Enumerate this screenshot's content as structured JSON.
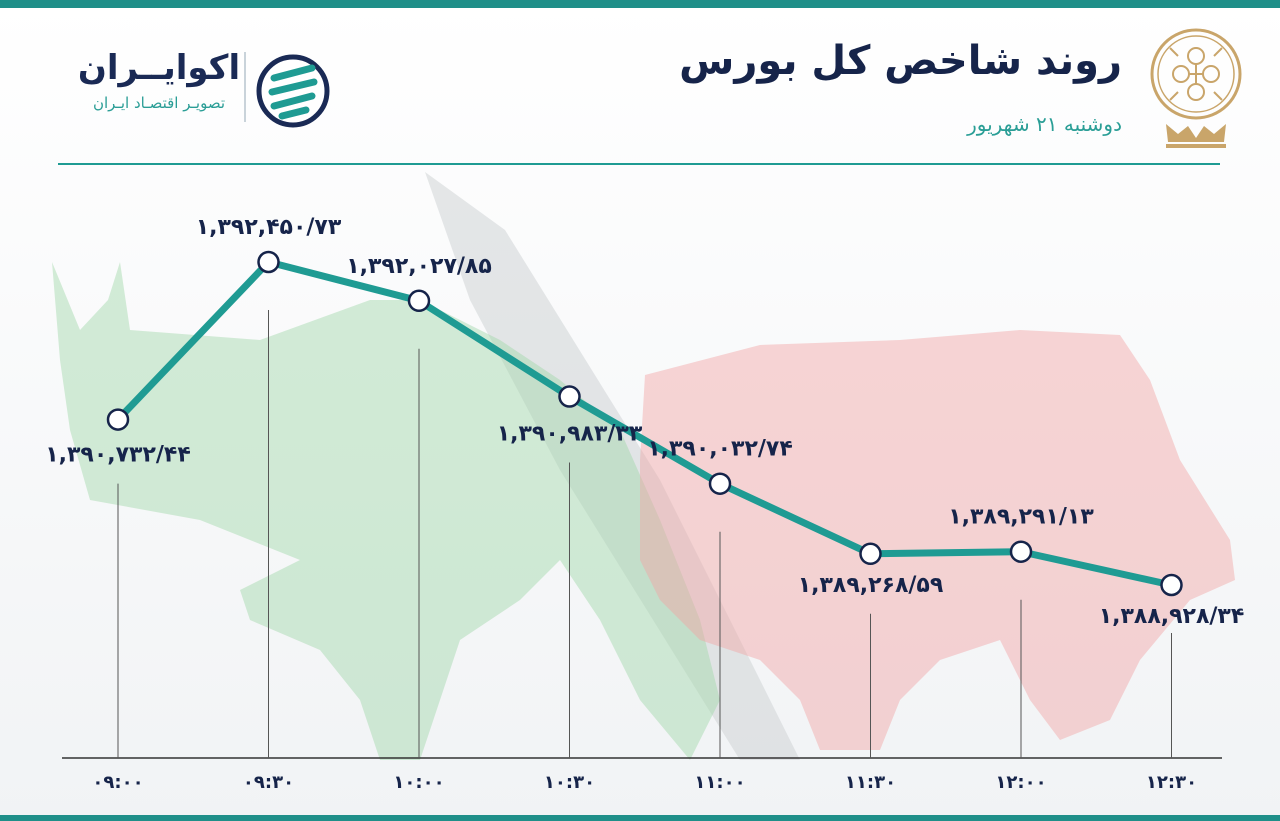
{
  "header": {
    "title": "روند شاخص کل بورس",
    "subtitle": "دوشنبه ۲۱ شهریور",
    "brand_name": "اکوایــران",
    "brand_tagline": "تصویـر اقتصـاد ایـران"
  },
  "colors": {
    "accent": "#1f9b93",
    "navy": "#16244a",
    "bull": "#9fd8a8",
    "bear": "#f2a5a5",
    "emblem": "#c9a56a"
  },
  "chart_data": {
    "type": "line",
    "title": "روند شاخص کل بورس",
    "xlabel": "",
    "ylabel": "",
    "categories": [
      "۰۹:۰۰",
      "۰۹:۳۰",
      "۱۰:۰۰",
      "۱۰:۳۰",
      "۱۱:۰۰",
      "۱۱:۳۰",
      "۱۲:۰۰",
      "۱۲:۳۰"
    ],
    "values": [
      1390732.44,
      1392450.73,
      1392027.85,
      1390983.33,
      1390032.74,
      1389268.59,
      1389291.13,
      1388928.34
    ],
    "data_labels": [
      "۱,۳۹۰,۷۳۲/۴۴",
      "۱,۳۹۲,۴۵۰/۷۳",
      "۱,۳۹۲,۰۲۷/۸۵",
      "۱,۳۹۰,۹۸۳/۳۳",
      "۱,۳۹۰,۰۳۲/۷۴",
      "۱,۳۸۹,۲۶۸/۵۹",
      "۱,۳۸۹,۲۹۱/۱۳",
      "۱,۳۸۸,۹۲۸/۳۴"
    ],
    "grid": false
  }
}
